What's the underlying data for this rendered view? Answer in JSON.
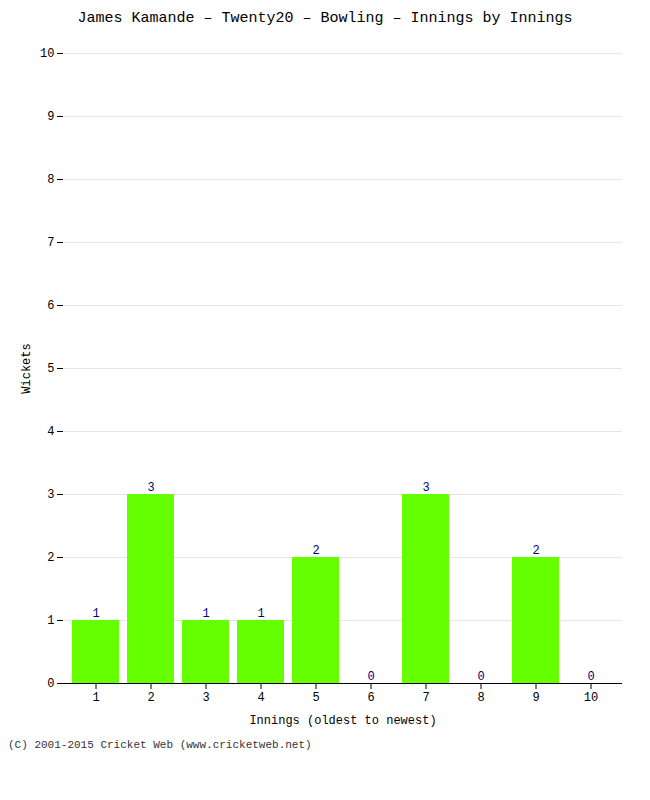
{
  "chart_data": {
    "type": "bar",
    "title": "James Kamande – Twenty20 – Bowling – Innings by Innings",
    "xlabel": "Innings (oldest to newest)",
    "ylabel": "Wickets",
    "caption": "(C) 2001-2015 Cricket Web (www.cricketweb.net)",
    "categories": [
      "1",
      "2",
      "3",
      "4",
      "5",
      "6",
      "7",
      "8",
      "9",
      "10"
    ],
    "values": [
      1,
      3,
      1,
      1,
      2,
      0,
      3,
      0,
      2,
      0
    ],
    "color": "#66ff00",
    "ylim": [
      0,
      10
    ],
    "yticks": [
      0,
      1,
      2,
      3,
      4,
      5,
      6,
      7,
      8,
      9,
      10
    ],
    "grid": true,
    "data_labels": true
  }
}
